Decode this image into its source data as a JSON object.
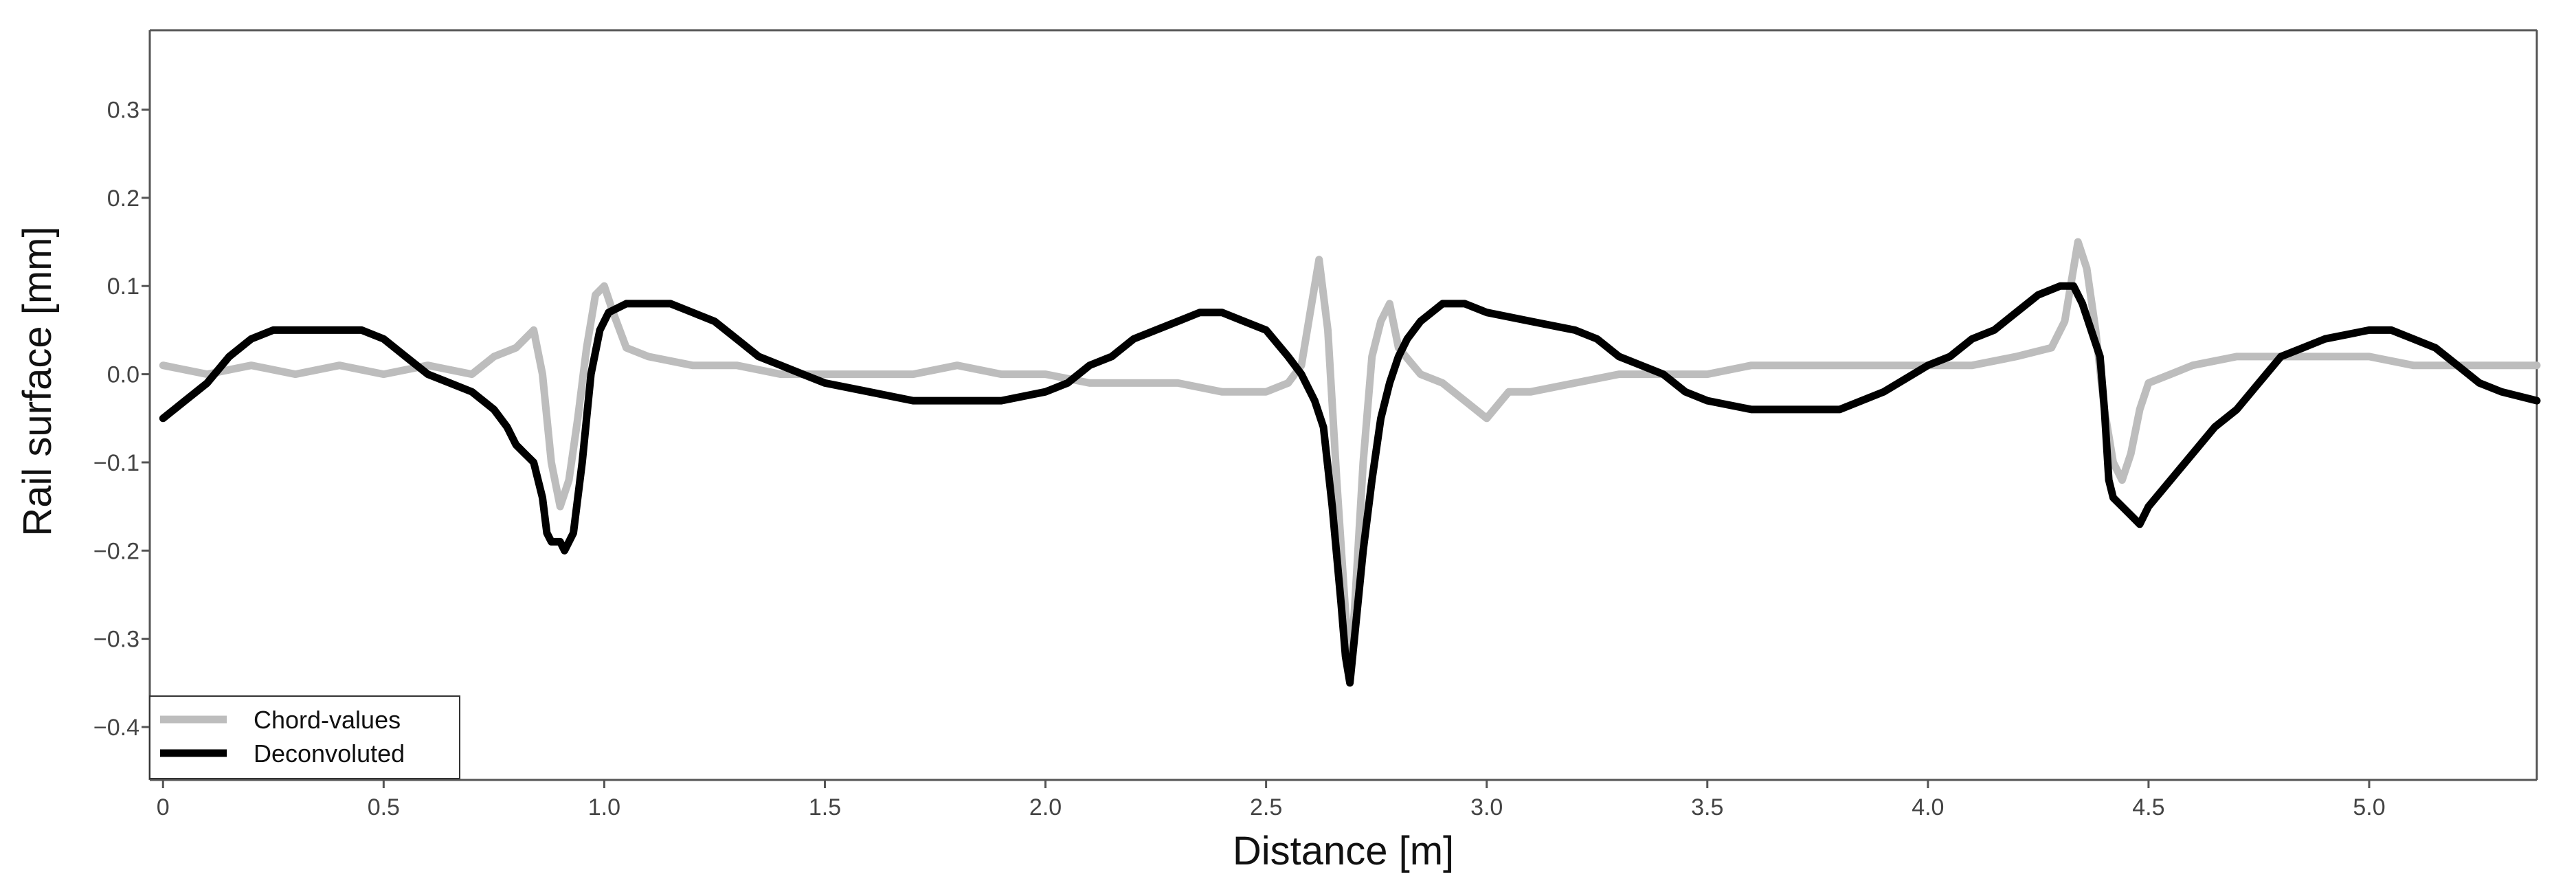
{
  "chart_data": {
    "type": "line",
    "xlabel": "Distance [m]",
    "ylabel": "Rail surface [mm]",
    "xlim": [
      -0.03,
      5.38
    ],
    "ylim": [
      -0.46,
      0.39
    ],
    "x_ticks": [
      0,
      0.5,
      1.0,
      1.5,
      2.0,
      2.5,
      3.0,
      3.5,
      4.0,
      4.5,
      5.0
    ],
    "x_tick_labels": [
      "0",
      "0.5",
      "1.0",
      "1.5",
      "2.0",
      "2.5",
      "3.0",
      "3.5",
      "4.0",
      "4.5",
      "5.0"
    ],
    "y_ticks": [
      0.3,
      0.2,
      0.1,
      0.0,
      -0.1,
      -0.2,
      -0.3,
      -0.4
    ],
    "y_tick_labels": [
      "0.3",
      "0.2",
      "0.1",
      "0.0",
      "−0.1",
      "−0.2",
      "−0.3",
      "−0.4"
    ],
    "grid": false,
    "legend_position": "bottom-left",
    "series": [
      {
        "name": "Chord-values",
        "color": "#bdbdbd",
        "points": [
          [
            0.0,
            0.01
          ],
          [
            0.1,
            0.0
          ],
          [
            0.2,
            0.01
          ],
          [
            0.3,
            0.0
          ],
          [
            0.4,
            0.01
          ],
          [
            0.5,
            0.0
          ],
          [
            0.6,
            0.01
          ],
          [
            0.7,
            0.0
          ],
          [
            0.75,
            0.02
          ],
          [
            0.8,
            0.03
          ],
          [
            0.84,
            0.05
          ],
          [
            0.86,
            0.0
          ],
          [
            0.88,
            -0.1
          ],
          [
            0.9,
            -0.15
          ],
          [
            0.92,
            -0.12
          ],
          [
            0.94,
            -0.05
          ],
          [
            0.96,
            0.03
          ],
          [
            0.98,
            0.09
          ],
          [
            1.0,
            0.1
          ],
          [
            1.02,
            0.07
          ],
          [
            1.05,
            0.03
          ],
          [
            1.1,
            0.02
          ],
          [
            1.2,
            0.01
          ],
          [
            1.3,
            0.01
          ],
          [
            1.4,
            0.0
          ],
          [
            1.5,
            0.0
          ],
          [
            1.6,
            0.0
          ],
          [
            1.7,
            0.0
          ],
          [
            1.8,
            0.01
          ],
          [
            1.9,
            0.0
          ],
          [
            2.0,
            0.0
          ],
          [
            2.1,
            -0.01
          ],
          [
            2.2,
            -0.01
          ],
          [
            2.3,
            -0.01
          ],
          [
            2.4,
            -0.02
          ],
          [
            2.5,
            -0.02
          ],
          [
            2.55,
            -0.01
          ],
          [
            2.58,
            0.01
          ],
          [
            2.6,
            0.07
          ],
          [
            2.62,
            0.13
          ],
          [
            2.64,
            0.05
          ],
          [
            2.66,
            -0.12
          ],
          [
            2.68,
            -0.27
          ],
          [
            2.69,
            -0.33
          ],
          [
            2.7,
            -0.27
          ],
          [
            2.72,
            -0.1
          ],
          [
            2.74,
            0.02
          ],
          [
            2.76,
            0.06
          ],
          [
            2.78,
            0.08
          ],
          [
            2.8,
            0.03
          ],
          [
            2.85,
            0.0
          ],
          [
            2.9,
            -0.01
          ],
          [
            2.95,
            -0.03
          ],
          [
            3.0,
            -0.05
          ],
          [
            3.05,
            -0.02
          ],
          [
            3.1,
            -0.02
          ],
          [
            3.2,
            -0.01
          ],
          [
            3.3,
            0.0
          ],
          [
            3.4,
            0.0
          ],
          [
            3.5,
            0.0
          ],
          [
            3.6,
            0.01
          ],
          [
            3.7,
            0.01
          ],
          [
            3.8,
            0.01
          ],
          [
            3.9,
            0.01
          ],
          [
            4.0,
            0.01
          ],
          [
            4.1,
            0.01
          ],
          [
            4.2,
            0.02
          ],
          [
            4.28,
            0.03
          ],
          [
            4.31,
            0.06
          ],
          [
            4.34,
            0.15
          ],
          [
            4.36,
            0.12
          ],
          [
            4.38,
            0.05
          ],
          [
            4.4,
            -0.04
          ],
          [
            4.42,
            -0.1
          ],
          [
            4.44,
            -0.12
          ],
          [
            4.46,
            -0.09
          ],
          [
            4.48,
            -0.04
          ],
          [
            4.5,
            -0.01
          ],
          [
            4.55,
            0.0
          ],
          [
            4.6,
            0.01
          ],
          [
            4.7,
            0.02
          ],
          [
            4.8,
            0.02
          ],
          [
            4.9,
            0.02
          ],
          [
            5.0,
            0.02
          ],
          [
            5.1,
            0.01
          ],
          [
            5.2,
            0.01
          ],
          [
            5.3,
            0.01
          ],
          [
            5.38,
            0.01
          ]
        ]
      },
      {
        "name": "Deconvoluted",
        "color": "#000000",
        "points": [
          [
            0.0,
            -0.05
          ],
          [
            0.05,
            -0.03
          ],
          [
            0.1,
            -0.01
          ],
          [
            0.15,
            0.02
          ],
          [
            0.2,
            0.04
          ],
          [
            0.25,
            0.05
          ],
          [
            0.3,
            0.05
          ],
          [
            0.35,
            0.05
          ],
          [
            0.4,
            0.05
          ],
          [
            0.45,
            0.05
          ],
          [
            0.5,
            0.04
          ],
          [
            0.55,
            0.02
          ],
          [
            0.6,
            0.0
          ],
          [
            0.65,
            -0.01
          ],
          [
            0.7,
            -0.02
          ],
          [
            0.75,
            -0.04
          ],
          [
            0.78,
            -0.06
          ],
          [
            0.8,
            -0.08
          ],
          [
            0.82,
            -0.09
          ],
          [
            0.84,
            -0.1
          ],
          [
            0.86,
            -0.14
          ],
          [
            0.87,
            -0.18
          ],
          [
            0.88,
            -0.19
          ],
          [
            0.9,
            -0.19
          ],
          [
            0.91,
            -0.2
          ],
          [
            0.93,
            -0.18
          ],
          [
            0.95,
            -0.1
          ],
          [
            0.97,
            0.0
          ],
          [
            0.99,
            0.05
          ],
          [
            1.01,
            0.07
          ],
          [
            1.05,
            0.08
          ],
          [
            1.1,
            0.08
          ],
          [
            1.15,
            0.08
          ],
          [
            1.2,
            0.07
          ],
          [
            1.25,
            0.06
          ],
          [
            1.3,
            0.04
          ],
          [
            1.35,
            0.02
          ],
          [
            1.4,
            0.01
          ],
          [
            1.45,
            0.0
          ],
          [
            1.5,
            -0.01
          ],
          [
            1.6,
            -0.02
          ],
          [
            1.7,
            -0.03
          ],
          [
            1.8,
            -0.03
          ],
          [
            1.9,
            -0.03
          ],
          [
            2.0,
            -0.02
          ],
          [
            2.05,
            -0.01
          ],
          [
            2.1,
            0.01
          ],
          [
            2.15,
            0.02
          ],
          [
            2.2,
            0.04
          ],
          [
            2.25,
            0.05
          ],
          [
            2.3,
            0.06
          ],
          [
            2.35,
            0.07
          ],
          [
            2.4,
            0.07
          ],
          [
            2.45,
            0.06
          ],
          [
            2.5,
            0.05
          ],
          [
            2.55,
            0.02
          ],
          [
            2.58,
            0.0
          ],
          [
            2.61,
            -0.03
          ],
          [
            2.63,
            -0.06
          ],
          [
            2.65,
            -0.15
          ],
          [
            2.67,
            -0.26
          ],
          [
            2.68,
            -0.32
          ],
          [
            2.69,
            -0.35
          ],
          [
            2.7,
            -0.3
          ],
          [
            2.72,
            -0.2
          ],
          [
            2.74,
            -0.12
          ],
          [
            2.76,
            -0.05
          ],
          [
            2.78,
            -0.01
          ],
          [
            2.8,
            0.02
          ],
          [
            2.82,
            0.04
          ],
          [
            2.85,
            0.06
          ],
          [
            2.9,
            0.08
          ],
          [
            2.95,
            0.08
          ],
          [
            3.0,
            0.07
          ],
          [
            3.1,
            0.06
          ],
          [
            3.2,
            0.05
          ],
          [
            3.25,
            0.04
          ],
          [
            3.3,
            0.02
          ],
          [
            3.35,
            0.01
          ],
          [
            3.4,
            0.0
          ],
          [
            3.45,
            -0.02
          ],
          [
            3.5,
            -0.03
          ],
          [
            3.6,
            -0.04
          ],
          [
            3.7,
            -0.04
          ],
          [
            3.8,
            -0.04
          ],
          [
            3.9,
            -0.02
          ],
          [
            4.0,
            0.01
          ],
          [
            4.05,
            0.02
          ],
          [
            4.1,
            0.04
          ],
          [
            4.15,
            0.05
          ],
          [
            4.2,
            0.07
          ],
          [
            4.25,
            0.09
          ],
          [
            4.3,
            0.1
          ],
          [
            4.33,
            0.1
          ],
          [
            4.35,
            0.08
          ],
          [
            4.37,
            0.05
          ],
          [
            4.39,
            0.02
          ],
          [
            4.4,
            -0.04
          ],
          [
            4.41,
            -0.12
          ],
          [
            4.42,
            -0.14
          ],
          [
            4.44,
            -0.15
          ],
          [
            4.46,
            -0.16
          ],
          [
            4.48,
            -0.17
          ],
          [
            4.5,
            -0.15
          ],
          [
            4.55,
            -0.12
          ],
          [
            4.6,
            -0.09
          ],
          [
            4.65,
            -0.06
          ],
          [
            4.7,
            -0.04
          ],
          [
            4.75,
            -0.01
          ],
          [
            4.8,
            0.02
          ],
          [
            4.85,
            0.03
          ],
          [
            4.9,
            0.04
          ],
          [
            5.0,
            0.05
          ],
          [
            5.05,
            0.05
          ],
          [
            5.1,
            0.04
          ],
          [
            5.15,
            0.03
          ],
          [
            5.2,
            0.01
          ],
          [
            5.25,
            -0.01
          ],
          [
            5.3,
            -0.02
          ],
          [
            5.38,
            -0.03
          ]
        ]
      }
    ]
  }
}
